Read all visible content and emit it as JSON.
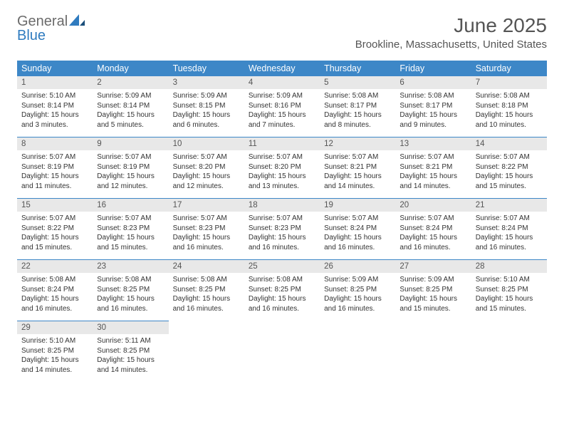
{
  "header": {
    "logo_text_gray": "General",
    "logo_text_blue": "Blue",
    "month_title": "June 2025",
    "location": "Brookline, Massachusetts, United States"
  },
  "colors": {
    "header_bar": "#3d87c7",
    "daynum_bg": "#e8e8e8",
    "row_border": "#3d87c7",
    "text_gray": "#555555",
    "logo_blue": "#2f7bbf"
  },
  "day_headers": [
    "Sunday",
    "Monday",
    "Tuesday",
    "Wednesday",
    "Thursday",
    "Friday",
    "Saturday"
  ],
  "weeks": [
    [
      {
        "num": "1",
        "sunrise": "Sunrise: 5:10 AM",
        "sunset": "Sunset: 8:14 PM",
        "day1": "Daylight: 15 hours",
        "day2": "and 3 minutes."
      },
      {
        "num": "2",
        "sunrise": "Sunrise: 5:09 AM",
        "sunset": "Sunset: 8:14 PM",
        "day1": "Daylight: 15 hours",
        "day2": "and 5 minutes."
      },
      {
        "num": "3",
        "sunrise": "Sunrise: 5:09 AM",
        "sunset": "Sunset: 8:15 PM",
        "day1": "Daylight: 15 hours",
        "day2": "and 6 minutes."
      },
      {
        "num": "4",
        "sunrise": "Sunrise: 5:09 AM",
        "sunset": "Sunset: 8:16 PM",
        "day1": "Daylight: 15 hours",
        "day2": "and 7 minutes."
      },
      {
        "num": "5",
        "sunrise": "Sunrise: 5:08 AM",
        "sunset": "Sunset: 8:17 PM",
        "day1": "Daylight: 15 hours",
        "day2": "and 8 minutes."
      },
      {
        "num": "6",
        "sunrise": "Sunrise: 5:08 AM",
        "sunset": "Sunset: 8:17 PM",
        "day1": "Daylight: 15 hours",
        "day2": "and 9 minutes."
      },
      {
        "num": "7",
        "sunrise": "Sunrise: 5:08 AM",
        "sunset": "Sunset: 8:18 PM",
        "day1": "Daylight: 15 hours",
        "day2": "and 10 minutes."
      }
    ],
    [
      {
        "num": "8",
        "sunrise": "Sunrise: 5:07 AM",
        "sunset": "Sunset: 8:19 PM",
        "day1": "Daylight: 15 hours",
        "day2": "and 11 minutes."
      },
      {
        "num": "9",
        "sunrise": "Sunrise: 5:07 AM",
        "sunset": "Sunset: 8:19 PM",
        "day1": "Daylight: 15 hours",
        "day2": "and 12 minutes."
      },
      {
        "num": "10",
        "sunrise": "Sunrise: 5:07 AM",
        "sunset": "Sunset: 8:20 PM",
        "day1": "Daylight: 15 hours",
        "day2": "and 12 minutes."
      },
      {
        "num": "11",
        "sunrise": "Sunrise: 5:07 AM",
        "sunset": "Sunset: 8:20 PM",
        "day1": "Daylight: 15 hours",
        "day2": "and 13 minutes."
      },
      {
        "num": "12",
        "sunrise": "Sunrise: 5:07 AM",
        "sunset": "Sunset: 8:21 PM",
        "day1": "Daylight: 15 hours",
        "day2": "and 14 minutes."
      },
      {
        "num": "13",
        "sunrise": "Sunrise: 5:07 AM",
        "sunset": "Sunset: 8:21 PM",
        "day1": "Daylight: 15 hours",
        "day2": "and 14 minutes."
      },
      {
        "num": "14",
        "sunrise": "Sunrise: 5:07 AM",
        "sunset": "Sunset: 8:22 PM",
        "day1": "Daylight: 15 hours",
        "day2": "and 15 minutes."
      }
    ],
    [
      {
        "num": "15",
        "sunrise": "Sunrise: 5:07 AM",
        "sunset": "Sunset: 8:22 PM",
        "day1": "Daylight: 15 hours",
        "day2": "and 15 minutes."
      },
      {
        "num": "16",
        "sunrise": "Sunrise: 5:07 AM",
        "sunset": "Sunset: 8:23 PM",
        "day1": "Daylight: 15 hours",
        "day2": "and 15 minutes."
      },
      {
        "num": "17",
        "sunrise": "Sunrise: 5:07 AM",
        "sunset": "Sunset: 8:23 PM",
        "day1": "Daylight: 15 hours",
        "day2": "and 16 minutes."
      },
      {
        "num": "18",
        "sunrise": "Sunrise: 5:07 AM",
        "sunset": "Sunset: 8:23 PM",
        "day1": "Daylight: 15 hours",
        "day2": "and 16 minutes."
      },
      {
        "num": "19",
        "sunrise": "Sunrise: 5:07 AM",
        "sunset": "Sunset: 8:24 PM",
        "day1": "Daylight: 15 hours",
        "day2": "and 16 minutes."
      },
      {
        "num": "20",
        "sunrise": "Sunrise: 5:07 AM",
        "sunset": "Sunset: 8:24 PM",
        "day1": "Daylight: 15 hours",
        "day2": "and 16 minutes."
      },
      {
        "num": "21",
        "sunrise": "Sunrise: 5:07 AM",
        "sunset": "Sunset: 8:24 PM",
        "day1": "Daylight: 15 hours",
        "day2": "and 16 minutes."
      }
    ],
    [
      {
        "num": "22",
        "sunrise": "Sunrise: 5:08 AM",
        "sunset": "Sunset: 8:24 PM",
        "day1": "Daylight: 15 hours",
        "day2": "and 16 minutes."
      },
      {
        "num": "23",
        "sunrise": "Sunrise: 5:08 AM",
        "sunset": "Sunset: 8:25 PM",
        "day1": "Daylight: 15 hours",
        "day2": "and 16 minutes."
      },
      {
        "num": "24",
        "sunrise": "Sunrise: 5:08 AM",
        "sunset": "Sunset: 8:25 PM",
        "day1": "Daylight: 15 hours",
        "day2": "and 16 minutes."
      },
      {
        "num": "25",
        "sunrise": "Sunrise: 5:08 AM",
        "sunset": "Sunset: 8:25 PM",
        "day1": "Daylight: 15 hours",
        "day2": "and 16 minutes."
      },
      {
        "num": "26",
        "sunrise": "Sunrise: 5:09 AM",
        "sunset": "Sunset: 8:25 PM",
        "day1": "Daylight: 15 hours",
        "day2": "and 16 minutes."
      },
      {
        "num": "27",
        "sunrise": "Sunrise: 5:09 AM",
        "sunset": "Sunset: 8:25 PM",
        "day1": "Daylight: 15 hours",
        "day2": "and 15 minutes."
      },
      {
        "num": "28",
        "sunrise": "Sunrise: 5:10 AM",
        "sunset": "Sunset: 8:25 PM",
        "day1": "Daylight: 15 hours",
        "day2": "and 15 minutes."
      }
    ],
    [
      {
        "num": "29",
        "sunrise": "Sunrise: 5:10 AM",
        "sunset": "Sunset: 8:25 PM",
        "day1": "Daylight: 15 hours",
        "day2": "and 14 minutes."
      },
      {
        "num": "30",
        "sunrise": "Sunrise: 5:11 AM",
        "sunset": "Sunset: 8:25 PM",
        "day1": "Daylight: 15 hours",
        "day2": "and 14 minutes."
      },
      null,
      null,
      null,
      null,
      null
    ]
  ]
}
